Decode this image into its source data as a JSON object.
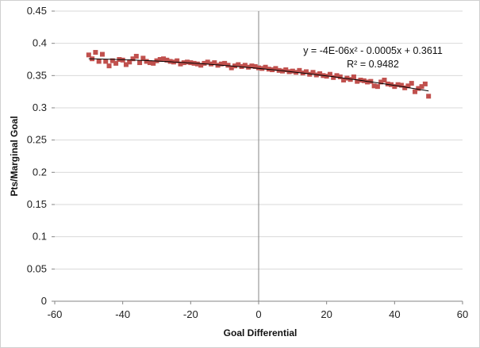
{
  "chart_data": {
    "type": "scatter",
    "title": "",
    "xlabel": "Goal Differential",
    "ylabel": "Pts/Marginal Goal",
    "xlim": [
      -60,
      60
    ],
    "ylim": [
      0,
      0.45
    ],
    "x_ticks": [
      -60,
      -40,
      -20,
      0,
      20,
      40,
      60
    ],
    "y_ticks": [
      "0",
      "0.05",
      "0.1",
      "0.15",
      "0.2",
      "0.25",
      "0.3",
      "0.35",
      "0.4",
      "0.45"
    ],
    "grid": "horizontal",
    "legend": "none",
    "marker": "square",
    "marker_color": "#C0504D",
    "x": [
      -50,
      -49,
      -48,
      -47,
      -46,
      -45,
      -44,
      -43,
      -42,
      -41,
      -40,
      -39,
      -38,
      -37,
      -36,
      -35,
      -34,
      -33,
      -32,
      -31,
      -30,
      -29,
      -28,
      -27,
      -26,
      -25,
      -24,
      -23,
      -22,
      -21,
      -20,
      -19,
      -18,
      -17,
      -16,
      -15,
      -14,
      -13,
      -12,
      -11,
      -10,
      -9,
      -8,
      -7,
      -6,
      -5,
      -4,
      -3,
      -2,
      -1,
      0,
      1,
      2,
      3,
      4,
      5,
      6,
      7,
      8,
      9,
      10,
      11,
      12,
      13,
      14,
      15,
      16,
      17,
      18,
      19,
      20,
      21,
      22,
      23,
      24,
      25,
      26,
      27,
      28,
      29,
      30,
      31,
      32,
      33,
      34,
      35,
      36,
      37,
      38,
      39,
      40,
      41,
      42,
      43,
      44,
      45,
      46,
      47,
      48,
      49,
      50
    ],
    "y": [
      0.382,
      0.376,
      0.386,
      0.372,
      0.383,
      0.372,
      0.365,
      0.373,
      0.369,
      0.375,
      0.374,
      0.367,
      0.371,
      0.376,
      0.38,
      0.37,
      0.377,
      0.372,
      0.37,
      0.369,
      0.373,
      0.375,
      0.376,
      0.374,
      0.372,
      0.371,
      0.373,
      0.368,
      0.37,
      0.371,
      0.37,
      0.369,
      0.368,
      0.366,
      0.369,
      0.371,
      0.368,
      0.37,
      0.366,
      0.368,
      0.369,
      0.366,
      0.362,
      0.365,
      0.367,
      0.364,
      0.366,
      0.363,
      0.365,
      0.364,
      0.362,
      0.361,
      0.363,
      0.36,
      0.359,
      0.361,
      0.358,
      0.357,
      0.359,
      0.356,
      0.357,
      0.355,
      0.358,
      0.354,
      0.356,
      0.352,
      0.355,
      0.351,
      0.353,
      0.35,
      0.349,
      0.352,
      0.347,
      0.35,
      0.348,
      0.343,
      0.346,
      0.344,
      0.348,
      0.341,
      0.343,
      0.342,
      0.34,
      0.341,
      0.334,
      0.333,
      0.34,
      0.343,
      0.337,
      0.336,
      0.333,
      0.336,
      0.335,
      0.331,
      0.334,
      0.338,
      0.325,
      0.33,
      0.333,
      0.337,
      0.318
    ],
    "trendline": {
      "type": "polynomial-2",
      "coefficients": {
        "a": -4e-06,
        "b": -0.0005,
        "c": 0.3611
      },
      "color": "#000000",
      "equation_label": "y = -4E-06x² - 0.0005x + 0.3611",
      "r2_label": "R² = 0.9482"
    }
  }
}
